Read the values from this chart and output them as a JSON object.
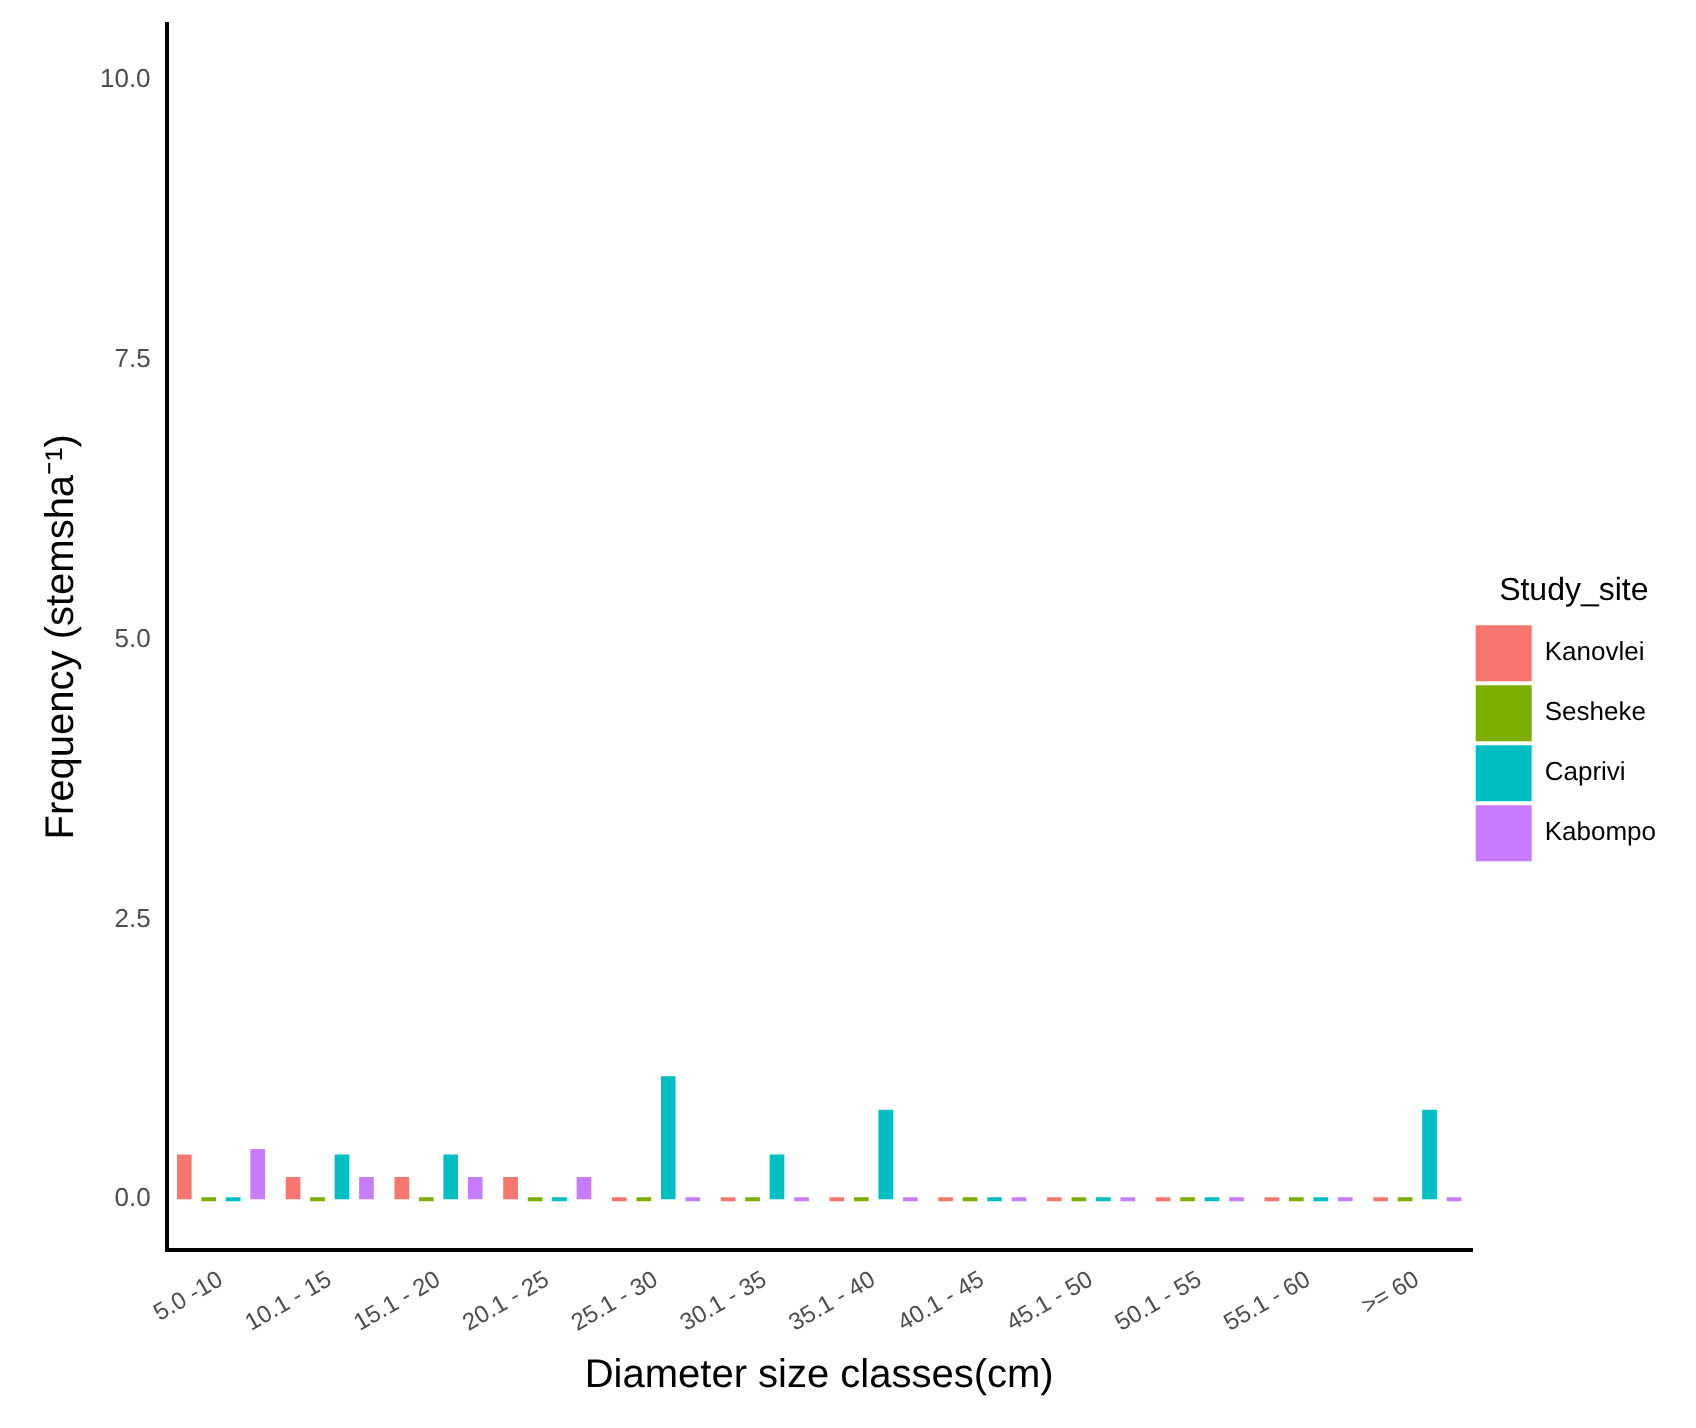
{
  "chart_data": {
    "type": "bar",
    "xlabel": "Diameter size classes(cm)",
    "ylabel": "Frequency (stemsha⁻¹)",
    "legend_title": "Study_site",
    "legend": "right",
    "grid": false,
    "categories": [
      "5.0 -10",
      "10.1 - 15",
      "15.1 - 20",
      "20.1 - 25",
      "25.1 - 30",
      "30.1 - 35",
      "35.1 - 40",
      "40.1 - 45",
      "45.1 - 50",
      "50.1 - 55",
      "55.1 - 60",
      ">= 60"
    ],
    "series": [
      {
        "name": "Kanovlei",
        "color": "#f8766d",
        "values": [
          0.4,
          0.2,
          0.2,
          0.2,
          0,
          0,
          0,
          0,
          0,
          0,
          0,
          0
        ]
      },
      {
        "name": "Sesheke",
        "color": "#7cae00",
        "values": [
          0,
          0,
          0,
          0,
          0,
          0,
          0,
          0,
          0,
          0,
          0,
          0
        ]
      },
      {
        "name": "Caprivi",
        "color": "#00bfc4",
        "values": [
          0,
          0.4,
          0.4,
          0,
          1.1,
          0.4,
          0.8,
          0,
          0,
          0,
          0,
          0.8
        ]
      },
      {
        "name": "Kabompo",
        "color": "#c77cff",
        "values": [
          0.45,
          0.2,
          0.2,
          0.2,
          0,
          0,
          0,
          0,
          0,
          0,
          0,
          0
        ]
      }
    ],
    "ylim": [
      -0.45,
      10.5
    ],
    "yticks": [
      {
        "value": 0,
        "label": "0.0"
      },
      {
        "value": 2.5,
        "label": "2.5"
      },
      {
        "value": 5,
        "label": "5.0"
      },
      {
        "value": 7.5,
        "label": "7.5"
      },
      {
        "value": 10,
        "label": "10.0"
      }
    ]
  }
}
